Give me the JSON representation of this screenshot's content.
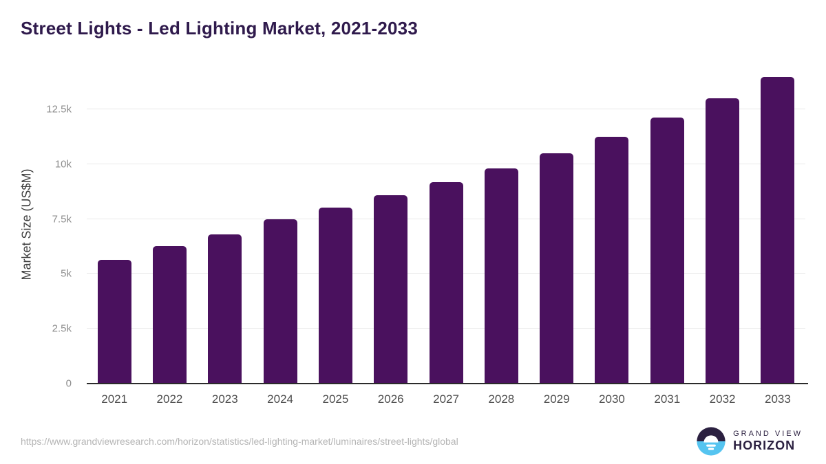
{
  "chart_data": {
    "type": "bar",
    "title": "Street Lights - Led Lighting Market, 2021-2033",
    "categories": [
      "2021",
      "2022",
      "2023",
      "2024",
      "2025",
      "2026",
      "2027",
      "2028",
      "2029",
      "2030",
      "2031",
      "2032",
      "2033"
    ],
    "values": [
      5650,
      6250,
      6810,
      7470,
      8030,
      8590,
      9190,
      9810,
      10500,
      11250,
      12120,
      13000,
      13970
    ],
    "xlabel": "",
    "ylabel": "Market Size (US$M)",
    "ylim": [
      0,
      14500
    ],
    "yticks": [
      {
        "value": 0,
        "label": "0"
      },
      {
        "value": 2500,
        "label": "2.5k"
      },
      {
        "value": 5000,
        "label": "5k"
      },
      {
        "value": 7500,
        "label": "7.5k"
      },
      {
        "value": 10000,
        "label": "10k"
      },
      {
        "value": 12500,
        "label": "12.5k"
      },
      {
        "value": 14500,
        "label": ""
      }
    ],
    "grid": true,
    "legend": "none",
    "bar_color": "#4a115e"
  },
  "colors": {
    "title_text": "#2f1a4c",
    "bar": "#4a115e",
    "gridline": "#e8e8e8",
    "axis_line": "#2b2b2b",
    "y_tick_text": "#8e8e8e",
    "x_tick_text": "#4d4d4d",
    "url_text": "#b4b4b4",
    "logo_dark": "#2b2040",
    "logo_blue": "#55c4f0"
  },
  "footer": {
    "source_url": "https://www.grandviewresearch.com/horizon/statistics/led-lighting-market/luminaires/street-lights/global",
    "logo": {
      "line1": "GRAND VIEW",
      "line2": "HORIZON"
    }
  }
}
